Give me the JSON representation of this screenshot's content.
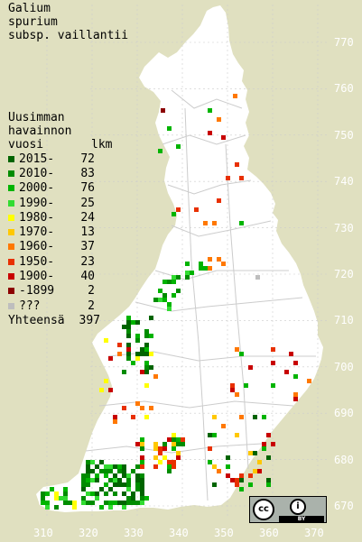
{
  "species": {
    "line1": "Galium",
    "line2": "spurium",
    "line3": "subsp. vaillantii"
  },
  "legend": {
    "heading1": "Uusimman",
    "heading2": "havainnon",
    "heading3": "vuosi",
    "count_header": "lkm",
    "rows": [
      {
        "label": "2015-",
        "count": "72",
        "color": "#006400"
      },
      {
        "label": "2010-",
        "count": "83",
        "color": "#008c00"
      },
      {
        "label": "2000-",
        "count": "76",
        "color": "#00b400"
      },
      {
        "label": "1990-",
        "count": "25",
        "color": "#32dc32"
      },
      {
        "label": "1980-",
        "count": "24",
        "color": "#ffff00"
      },
      {
        "label": "1970-",
        "count": "13",
        "color": "#ffc800"
      },
      {
        "label": "1960-",
        "count": "37",
        "color": "#ff7800"
      },
      {
        "label": "1950-",
        "count": "23",
        "color": "#e83000"
      },
      {
        "label": "1900-",
        "count": "40",
        "color": "#c80000"
      },
      {
        "label": "-1899",
        "count": "2",
        "color": "#8c0000"
      },
      {
        "label": "???",
        "count": "2",
        "color": "#bebebe"
      }
    ],
    "total_label": "Yhteensä",
    "total_count": "397"
  },
  "grid": {
    "y_labels": [
      "770",
      "760",
      "750",
      "740",
      "730",
      "720",
      "710",
      "700",
      "690",
      "680",
      "670"
    ],
    "x_labels": [
      "310",
      "320",
      "330",
      "340",
      "350",
      "360",
      "370"
    ]
  },
  "colors": {
    "background": "#e0e0c0",
    "land": "#ffffff",
    "grid_label": "#ffffff"
  },
  "license": {
    "cc": "cc",
    "by_icon": "i",
    "by_text": "BY"
  }
}
